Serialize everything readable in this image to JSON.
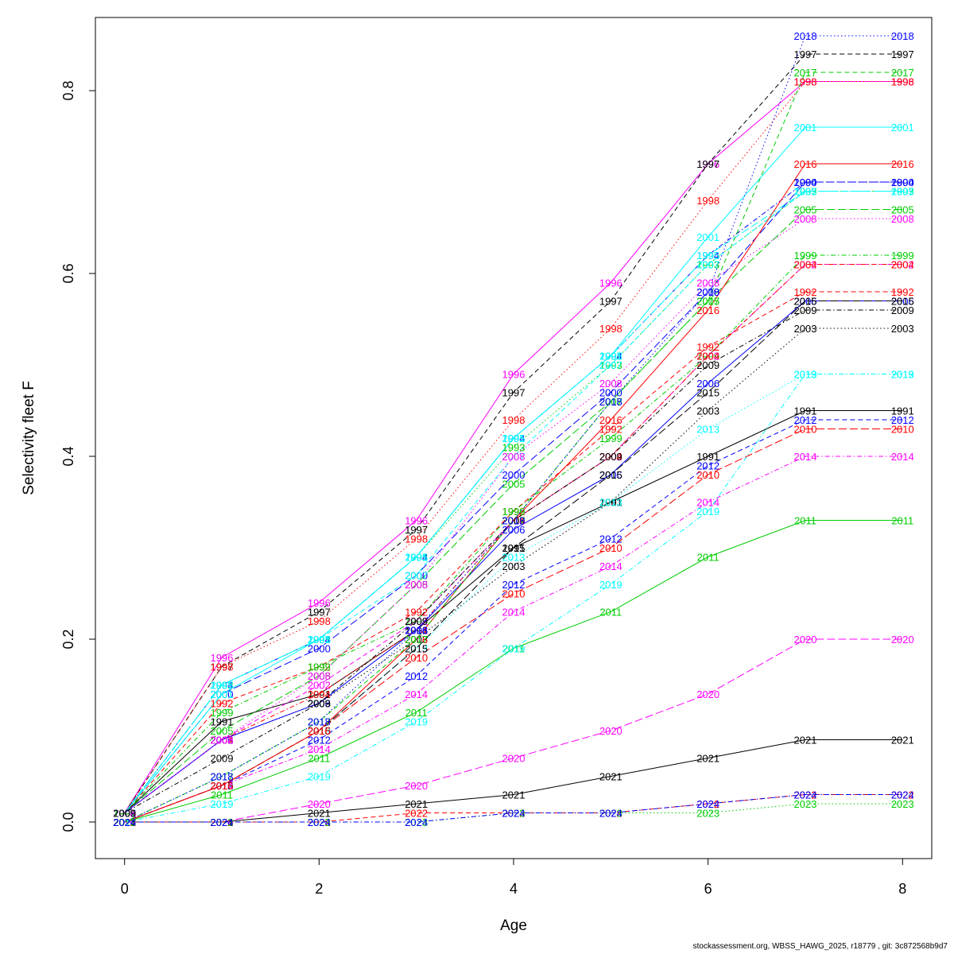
{
  "chart_data": {
    "type": "line",
    "title": "",
    "xlabel": "Age",
    "ylabel": "Selectivity fleet F",
    "xlim": [
      -0.3,
      8.3
    ],
    "ylim": [
      -0.04,
      0.88
    ],
    "x_ticks": [
      0,
      2,
      4,
      6,
      8
    ],
    "y_ticks": [
      0.0,
      0.2,
      0.4,
      0.6,
      0.8
    ],
    "y_tick_labels": [
      "0.0",
      "0.2",
      "0.4",
      "0.6",
      "0.8"
    ],
    "grid": false,
    "legend": "none",
    "x": [
      0,
      1,
      2,
      3,
      4,
      5,
      6,
      7,
      8
    ],
    "series": [
      {
        "name": "1991",
        "color": "#000000",
        "dash": "solid",
        "values": [
          0.01,
          0.11,
          0.14,
          0.21,
          0.3,
          0.35,
          0.4,
          0.45,
          0.45
        ]
      },
      {
        "name": "1992",
        "color": "#ff0000",
        "dash": "dashed",
        "values": [
          0.01,
          0.13,
          0.17,
          0.23,
          0.34,
          0.43,
          0.52,
          0.58,
          0.58
        ]
      },
      {
        "name": "1993",
        "color": "#00cd00",
        "dash": "dotted",
        "values": [
          0.01,
          0.15,
          0.2,
          0.29,
          0.41,
          0.5,
          0.61,
          0.69,
          0.69
        ]
      },
      {
        "name": "1994",
        "color": "#0000ff",
        "dash": "dotdash",
        "values": [
          0.01,
          0.15,
          0.2,
          0.29,
          0.42,
          0.51,
          0.62,
          0.7,
          0.7
        ]
      },
      {
        "name": "1995",
        "color": "#00ffff",
        "dash": "longdash",
        "values": [
          0.01,
          0.15,
          0.2,
          0.29,
          0.42,
          0.51,
          0.62,
          0.69,
          0.69
        ]
      },
      {
        "name": "1996",
        "color": "#ff00ff",
        "dash": "solid",
        "values": [
          0.01,
          0.18,
          0.24,
          0.33,
          0.49,
          0.59,
          0.72,
          0.81,
          0.81
        ]
      },
      {
        "name": "1997",
        "color": "#000000",
        "dash": "dashed",
        "values": [
          0.01,
          0.17,
          0.23,
          0.32,
          0.47,
          0.57,
          0.72,
          0.84,
          0.84
        ]
      },
      {
        "name": "1998",
        "color": "#ff0000",
        "dash": "dotted",
        "values": [
          0.01,
          0.17,
          0.22,
          0.31,
          0.44,
          0.54,
          0.68,
          0.81,
          0.81
        ]
      },
      {
        "name": "1999",
        "color": "#00cd00",
        "dash": "dotdash",
        "values": [
          0.01,
          0.12,
          0.17,
          0.22,
          0.34,
          0.42,
          0.51,
          0.62,
          0.62
        ]
      },
      {
        "name": "2000",
        "color": "#0000ff",
        "dash": "longdash",
        "values": [
          0.01,
          0.14,
          0.19,
          0.27,
          0.38,
          0.47,
          0.58,
          0.7,
          0.7
        ]
      },
      {
        "name": "2001",
        "color": "#00ffff",
        "dash": "solid",
        "values": [
          0.01,
          0.14,
          0.2,
          0.29,
          0.42,
          0.51,
          0.64,
          0.76,
          0.76
        ]
      },
      {
        "name": "2002",
        "color": "#ff00ff",
        "dash": "dashed",
        "values": [
          0.01,
          0.09,
          0.15,
          0.22,
          0.33,
          0.4,
          0.51,
          0.61,
          0.61
        ]
      },
      {
        "name": "2003",
        "color": "#000000",
        "dash": "dotted",
        "values": [
          0.01,
          0.09,
          0.13,
          0.2,
          0.28,
          0.35,
          0.45,
          0.54,
          0.54
        ]
      },
      {
        "name": "2004",
        "color": "#ff0000",
        "dash": "dotdash",
        "values": [
          0.01,
          0.09,
          0.14,
          0.21,
          0.33,
          0.4,
          0.51,
          0.61,
          0.61
        ]
      },
      {
        "name": "2005",
        "color": "#00cd00",
        "dash": "longdash",
        "values": [
          0.01,
          0.1,
          0.16,
          0.26,
          0.37,
          0.46,
          0.57,
          0.67,
          0.67
        ]
      },
      {
        "name": "2006",
        "color": "#0000ff",
        "dash": "solid",
        "values": [
          0.01,
          0.09,
          0.13,
          0.21,
          0.32,
          0.38,
          0.48,
          0.57,
          0.57
        ]
      },
      {
        "name": "2007",
        "color": "#00ffff",
        "dash": "dashed",
        "values": [
          0.01,
          0.15,
          0.2,
          0.27,
          0.4,
          0.5,
          0.61,
          0.69,
          0.69
        ]
      },
      {
        "name": "2008",
        "color": "#ff00ff",
        "dash": "dotted",
        "values": [
          0.01,
          0.09,
          0.16,
          0.26,
          0.4,
          0.48,
          0.59,
          0.66,
          0.66
        ]
      },
      {
        "name": "2009",
        "color": "#000000",
        "dash": "dotdash",
        "values": [
          0.01,
          0.07,
          0.13,
          0.22,
          0.33,
          0.4,
          0.5,
          0.56,
          0.56
        ]
      },
      {
        "name": "2010",
        "color": "#ff0000",
        "dash": "longdash",
        "values": [
          0.0,
          0.04,
          0.1,
          0.18,
          0.25,
          0.3,
          0.38,
          0.43,
          0.43
        ]
      },
      {
        "name": "2011",
        "color": "#00cd00",
        "dash": "solid",
        "values": [
          0.0,
          0.03,
          0.07,
          0.12,
          0.19,
          0.23,
          0.29,
          0.33,
          0.33
        ]
      },
      {
        "name": "2012",
        "color": "#0000ff",
        "dash": "dashed",
        "values": [
          0.0,
          0.04,
          0.09,
          0.16,
          0.26,
          0.31,
          0.39,
          0.44,
          0.44
        ]
      },
      {
        "name": "2013",
        "color": "#00ffff",
        "dash": "dotted",
        "values": [
          0.0,
          0.04,
          0.1,
          0.19,
          0.29,
          0.35,
          0.43,
          0.49,
          0.49
        ]
      },
      {
        "name": "2014",
        "color": "#ff00ff",
        "dash": "dotdash",
        "values": [
          0.0,
          0.04,
          0.08,
          0.14,
          0.23,
          0.28,
          0.35,
          0.4,
          0.4
        ]
      },
      {
        "name": "2015",
        "color": "#000000",
        "dash": "longdash",
        "values": [
          0.0,
          0.04,
          0.1,
          0.19,
          0.3,
          0.38,
          0.47,
          0.57,
          0.57
        ]
      },
      {
        "name": "2016",
        "color": "#ff0000",
        "dash": "solid",
        "values": [
          0.0,
          0.04,
          0.1,
          0.2,
          0.33,
          0.44,
          0.56,
          0.72,
          0.72
        ]
      },
      {
        "name": "2017",
        "color": "#00cd00",
        "dash": "dashed",
        "values": [
          0.0,
          0.05,
          0.11,
          0.2,
          0.33,
          0.46,
          0.57,
          0.82,
          0.82
        ]
      },
      {
        "name": "2018",
        "color": "#0000ff",
        "dash": "dotted",
        "values": [
          0.0,
          0.05,
          0.11,
          0.21,
          0.33,
          0.46,
          0.58,
          0.86,
          0.86
        ]
      },
      {
        "name": "2019",
        "color": "#00ffff",
        "dash": "dotdash",
        "values": [
          0.0,
          0.02,
          0.05,
          0.11,
          0.19,
          0.26,
          0.34,
          0.49,
          0.49
        ]
      },
      {
        "name": "2020",
        "color": "#ff00ff",
        "dash": "longdash",
        "values": [
          0.0,
          0.0,
          0.02,
          0.04,
          0.07,
          0.1,
          0.14,
          0.2,
          0.2
        ]
      },
      {
        "name": "2021",
        "color": "#000000",
        "dash": "solid",
        "values": [
          0.0,
          0.0,
          0.01,
          0.02,
          0.03,
          0.05,
          0.07,
          0.09,
          0.09
        ]
      },
      {
        "name": "2022",
        "color": "#ff0000",
        "dash": "dashed",
        "values": [
          0.0,
          0.0,
          0.0,
          0.01,
          0.01,
          0.01,
          0.02,
          0.03,
          0.03
        ]
      },
      {
        "name": "2023",
        "color": "#00cd00",
        "dash": "dotted",
        "values": [
          0.0,
          0.0,
          0.0,
          0.0,
          0.01,
          0.01,
          0.01,
          0.02,
          0.02
        ]
      },
      {
        "name": "2024",
        "color": "#0000ff",
        "dash": "dotdash",
        "values": [
          0.0,
          0.0,
          0.0,
          0.0,
          0.01,
          0.01,
          0.02,
          0.03,
          0.03
        ]
      }
    ]
  },
  "footer": "stockassessment.org, WBSS_HAWG_2025, r18779 , git: 3c872568b9d7"
}
